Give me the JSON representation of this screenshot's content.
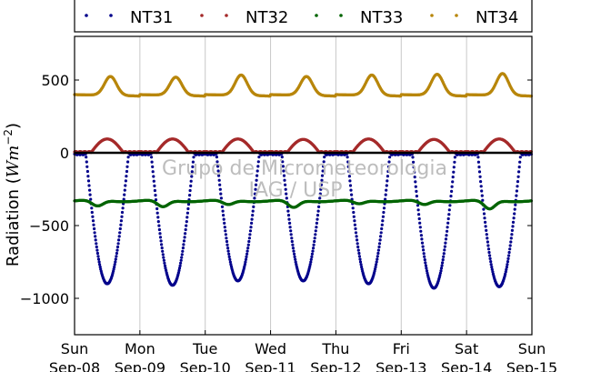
{
  "chart_data": {
    "type": "scatter",
    "ylabel": "Radiation",
    "yunit": "Wm",
    "yunit_exp": "−2",
    "ylim": [
      -1250,
      800
    ],
    "yticks": [
      500,
      0,
      -500,
      -1000
    ],
    "ytick_labels": [
      "500",
      "0",
      "−500",
      "−1000"
    ],
    "xlim": [
      0,
      7
    ],
    "xticks": [
      {
        "x": 0,
        "day": "Sun",
        "date": "Sep-08"
      },
      {
        "x": 1,
        "day": "Mon",
        "date": "Sep-09"
      },
      {
        "x": 2,
        "day": "Tue",
        "date": "Sep-10"
      },
      {
        "x": 3,
        "day": "Wed",
        "date": "Sep-11"
      },
      {
        "x": 4,
        "day": "Thu",
        "date": "Sep-12"
      },
      {
        "x": 5,
        "day": "Fri",
        "date": "Sep-13"
      },
      {
        "x": 6,
        "day": "Sat",
        "date": "Sep-14"
      },
      {
        "x": 7,
        "day": "Sun",
        "date": "Sep-15"
      }
    ],
    "vertical_grid": true,
    "zero_line": true,
    "watermark": [
      "Grupo de Micrometeorologia",
      "IAG / USP"
    ],
    "legend_position": "top",
    "series": [
      {
        "name": "NT31",
        "color": "#00008b",
        "day_minima": [
          -900,
          -910,
          -880,
          -880,
          -900,
          -930,
          -920
        ]
      },
      {
        "name": "NT32",
        "color": "#a52a2a",
        "day_peaks": [
          95,
          95,
          95,
          92,
          95,
          92,
          95
        ]
      },
      {
        "name": "NT33",
        "color": "#006400",
        "baseline": -330,
        "day_dips": [
          -370,
          -375,
          -360,
          -380,
          -355,
          -360,
          -390
        ]
      },
      {
        "name": "NT34",
        "color": "#b8860b",
        "baseline": 400,
        "day_peaks": [
          530,
          525,
          540,
          530,
          540,
          545,
          550
        ]
      }
    ]
  }
}
